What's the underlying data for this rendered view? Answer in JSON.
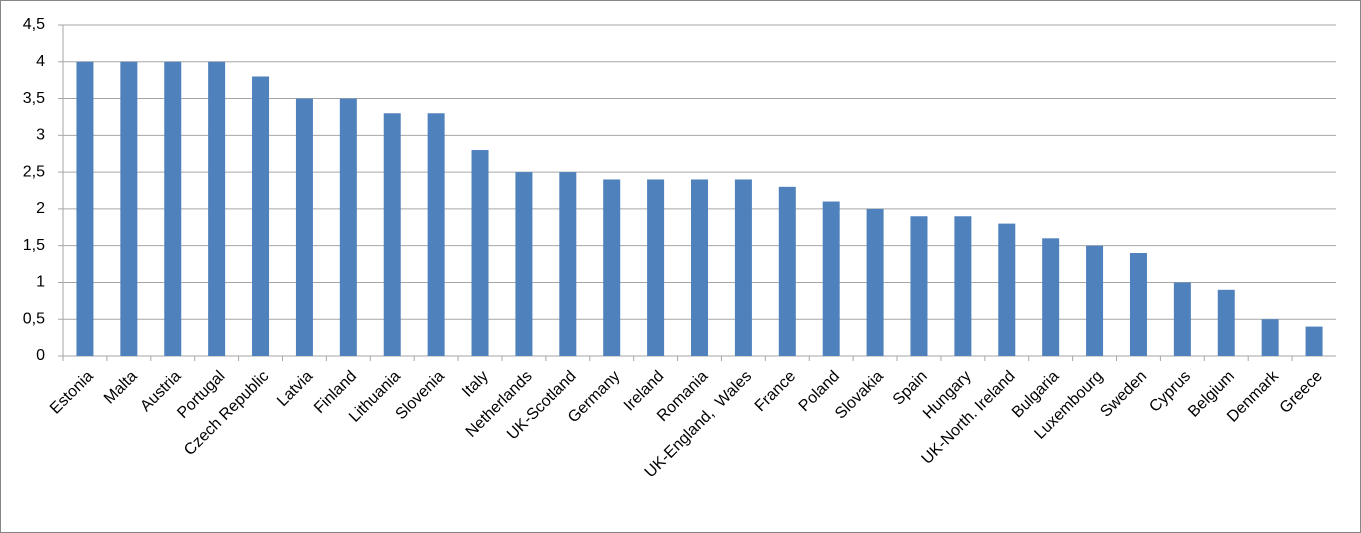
{
  "chart_data": {
    "type": "bar",
    "categories": [
      "Estonia",
      "Malta",
      "Austria",
      "Portugal",
      "Czech Republic",
      "Latvia",
      "Finland",
      "Lithuania",
      "Slovenia",
      "Italy",
      "Netherlands",
      "UK-Scotland",
      "Germany",
      "Ireland",
      "Romania",
      "UK-England,  Wales",
      "France",
      "Poland",
      "Slovakia",
      "Spain",
      "Hungary",
      "UK-North. Ireland",
      "Bulgaria",
      "Luxembourg",
      "Sweden",
      "Cyprus",
      "Belgium",
      "Denmark",
      "Greece"
    ],
    "values": [
      4,
      4,
      4,
      4,
      3.8,
      3.5,
      3.5,
      3.3,
      3.3,
      2.8,
      2.5,
      2.5,
      2.4,
      2.4,
      2.4,
      2.4,
      2.3,
      2.1,
      2.0,
      1.9,
      1.9,
      1.8,
      1.6,
      1.5,
      1.4,
      1.0,
      0.9,
      0.5,
      0.4
    ],
    "color": "#4f81bd",
    "ylim": [
      0,
      4.5
    ],
    "yticks": [
      0,
      {
        "value": 0.5,
        "label": "0,5"
      },
      1,
      {
        "value": 1.5,
        "label": "1,5"
      },
      2,
      {
        "value": 2.5,
        "label": "2,5"
      },
      3,
      {
        "value": 3.5,
        "label": "3,5"
      },
      4,
      {
        "value": 4.5,
        "label": "4,5"
      }
    ],
    "grid": true
  }
}
